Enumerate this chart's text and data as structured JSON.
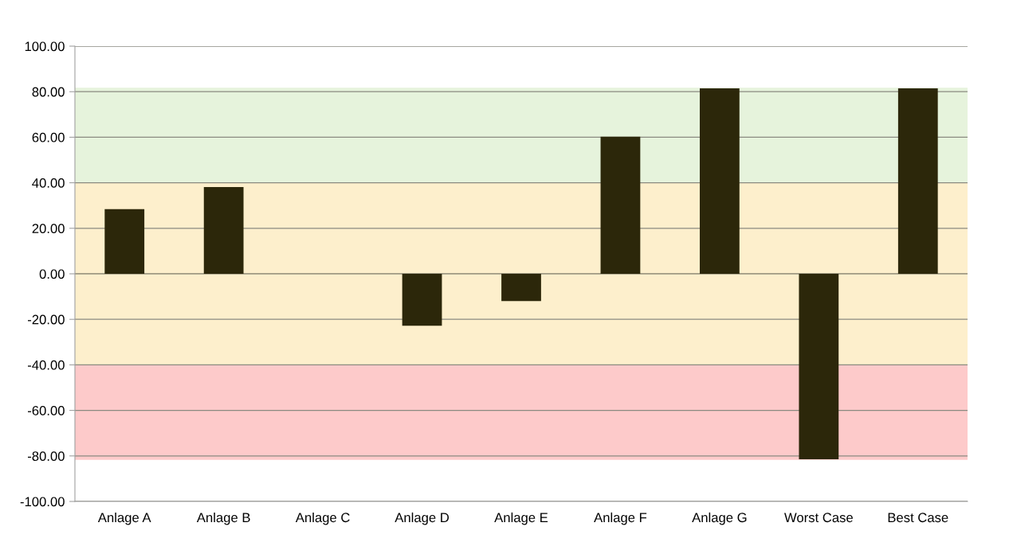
{
  "chart_data": {
    "type": "bar",
    "categories": [
      "Anlage A",
      "Anlage B",
      "Anlage C",
      "Anlage D",
      "Anlage E",
      "Anlage F",
      "Anlage G",
      "Worst Case",
      "Best Case"
    ],
    "values": [
      28.4,
      38.1,
      0,
      -22.8,
      -12.0,
      60.2,
      81.5,
      -81.5,
      81.5
    ],
    "color": "#2c270a",
    "ylim": [
      -100,
      100
    ],
    "yticks": [
      {
        "value": -100,
        "label": "-100.00"
      },
      {
        "value": -80,
        "label": "-80.00"
      },
      {
        "value": -60,
        "label": "-60.00"
      },
      {
        "value": -40,
        "label": "-40.00"
      },
      {
        "value": -20,
        "label": "-20.00"
      },
      {
        "value": 0,
        "label": "0.00"
      },
      {
        "value": 20,
        "label": "20.00"
      },
      {
        "value": 40,
        "label": "40.00"
      },
      {
        "value": 60,
        "label": "60.00"
      },
      {
        "value": 80,
        "label": "80.00"
      },
      {
        "value": 100,
        "label": "100.00"
      }
    ],
    "bands": [
      {
        "axis": "y",
        "from": 40,
        "to": 81.7,
        "color": "#e6f3dc"
      },
      {
        "axis": "y",
        "from": -40,
        "to": 40,
        "color": "#fdefcc"
      },
      {
        "axis": "y",
        "from": -81.7,
        "to": -40,
        "color": "#fdcaca"
      }
    ],
    "grid": "y",
    "legend": false
  }
}
